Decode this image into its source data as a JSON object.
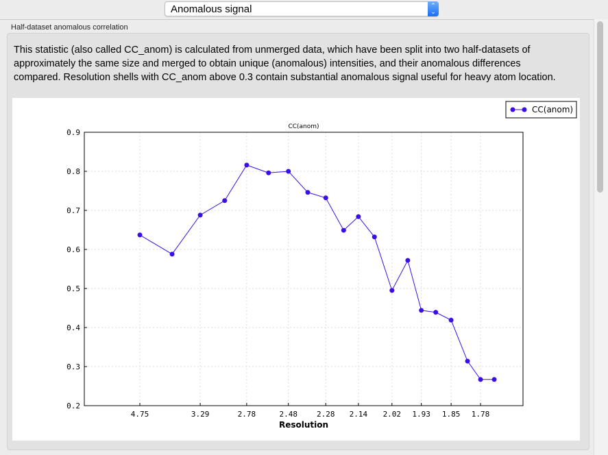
{
  "selector": {
    "value": "Anomalous signal"
  },
  "group": {
    "label": "Half-dataset anomalous correlation"
  },
  "description": "This statistic (also called CC_anom) is calculated from unmerged data, which have been split into two half-datasets of approximately the same size and merged to obtain unique (anomalous) intensities, and their anomalous differences compared.  Resolution shells with CC_anom above 0.3 contain substantial anomalous signal useful for heavy atom location.",
  "colors": {
    "series": "#3a0fe6"
  },
  "chart_data": {
    "type": "line",
    "title": "CC(anom)",
    "xlabel": "Resolution",
    "ylabel": "",
    "x_scale": "1/d^2",
    "ylim": [
      0.2,
      0.9
    ],
    "yticks": [
      "0.2",
      "0.3",
      "0.4",
      "0.5",
      "0.6",
      "0.7",
      "0.8",
      "0.9"
    ],
    "xticks": [
      "4.75",
      "3.29",
      "2.78",
      "2.48",
      "2.28",
      "2.14",
      "2.02",
      "1.93",
      "1.85",
      "1.78"
    ],
    "grid": true,
    "legend": "top-right",
    "series": [
      {
        "name": "CC(anom)",
        "x": [
          4.75,
          3.78,
          3.29,
          2.99,
          2.78,
          2.61,
          2.48,
          2.37,
          2.28,
          2.2,
          2.14,
          2.08,
          2.02,
          1.97,
          1.93,
          1.89,
          1.85,
          1.81,
          1.78,
          1.75
        ],
        "y": [
          0.637,
          0.588,
          0.688,
          0.725,
          0.816,
          0.796,
          0.8,
          0.746,
          0.732,
          0.649,
          0.684,
          0.632,
          0.495,
          0.572,
          0.444,
          0.439,
          0.419,
          0.314,
          0.267,
          0.267
        ]
      }
    ]
  }
}
